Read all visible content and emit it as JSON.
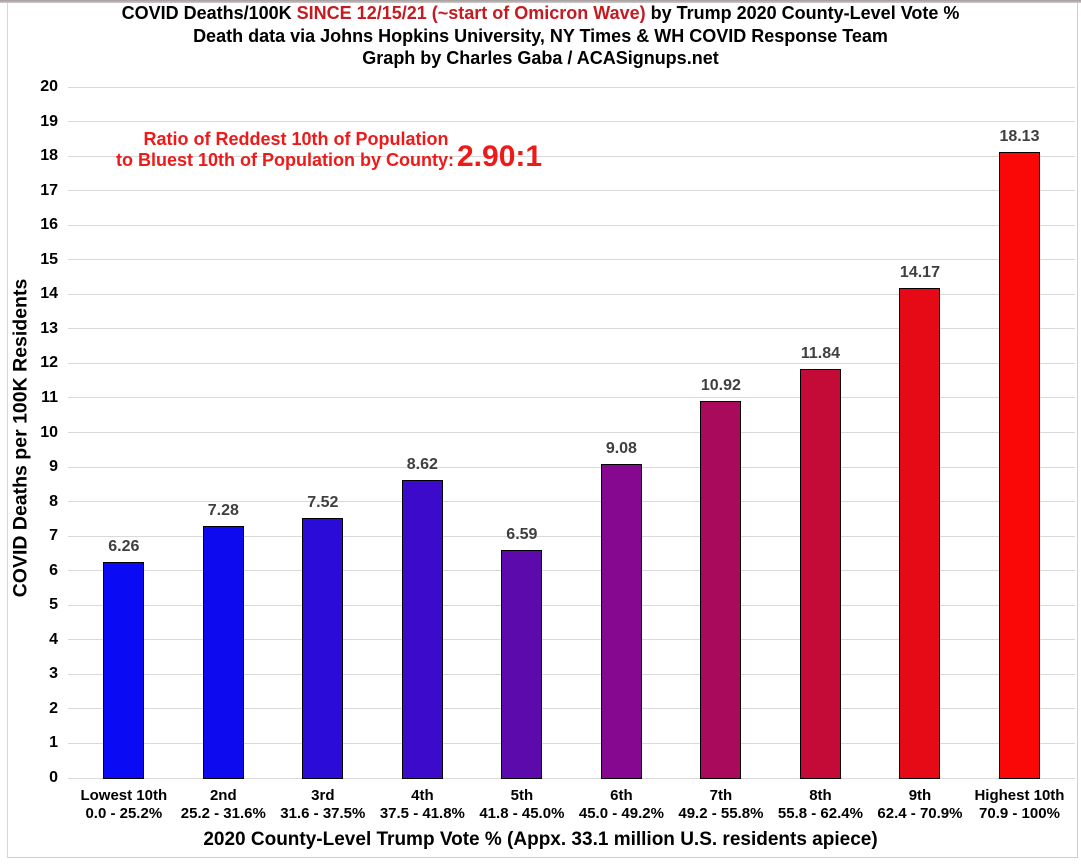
{
  "title": {
    "line1_black1": "COVID Deaths/100K ",
    "line1_red": "SINCE 12/15/21 (~start of Omicron Wave)",
    "line1_black2": " by Trump 2020 County-Level Vote %",
    "line2": "Death data via Johns Hopkins University, NY Times & WH COVID Response Team",
    "line3": "Graph by Charles Gaba / ACASignups.net",
    "red_color": "#c51a20"
  },
  "annotation": {
    "line1": "Ratio of Reddest 10th of Population",
    "line2": "to Bluest 10th of Population by County:",
    "ratio": "2.90:1",
    "color": "#ee1a1a"
  },
  "chart_data": {
    "type": "bar",
    "title": "COVID Deaths/100K SINCE 12/15/21 (~start of Omicron Wave) by Trump 2020 County-Level Vote %",
    "categories": [
      "Lowest 10th",
      "2nd",
      "3rd",
      "4th",
      "5th",
      "6th",
      "7th",
      "8th",
      "9th",
      "Highest 10th"
    ],
    "category_ranges": [
      "0.0 - 25.2%",
      "25.2 - 31.6%",
      "31.6 - 37.5%",
      "37.5 - 41.8%",
      "41.8 - 45.0%",
      "45.0 - 49.2%",
      "49.2 - 55.8%",
      "55.8 - 62.4%",
      "62.4 - 70.9%",
      "70.9 - 100%"
    ],
    "values": [
      6.26,
      7.28,
      7.52,
      8.62,
      6.59,
      9.08,
      10.92,
      11.84,
      14.17,
      18.13
    ],
    "bar_colors": [
      "#0a0af4",
      "#0e0af0",
      "#2b0bd8",
      "#3b0aca",
      "#5c0aac",
      "#860890",
      "#aa0a5c",
      "#c40a36",
      "#e60a16",
      "#fa0707"
    ],
    "value_label_color": "#3f3f3f",
    "ylabel": "COVID Deaths per 100K Residents",
    "xlabel": "2020 County-Level Trump Vote % (Appx. 33.1 million U.S. residents apiece)",
    "ylim": [
      0,
      20
    ],
    "ytick_step": 1,
    "grid": true,
    "gridline_color": "#d9d9d9"
  }
}
